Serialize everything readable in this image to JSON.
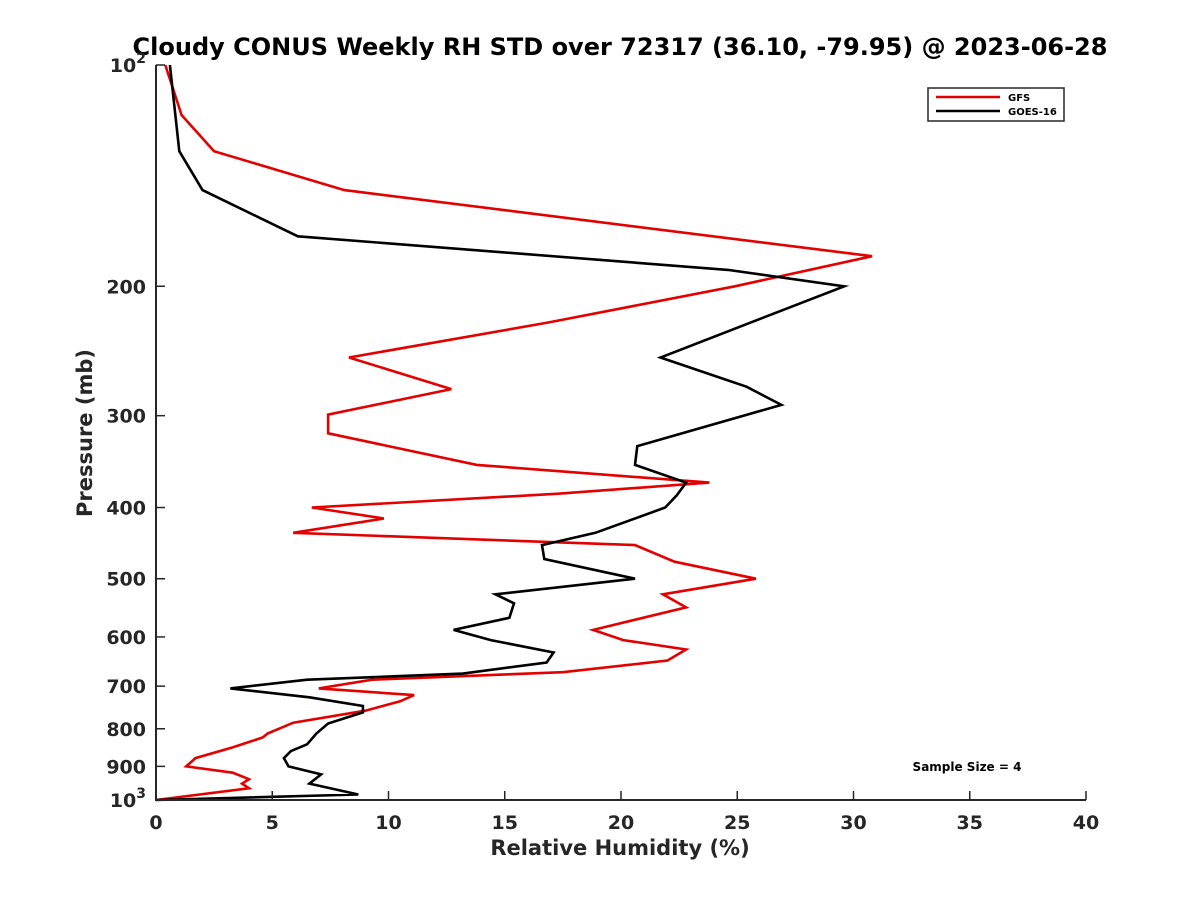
{
  "chart_data": {
    "type": "line",
    "title": "Cloudy CONUS Weekly RH STD over 72317 (36.10, -79.95) @ 2023-06-28",
    "xlabel": "Relative Humidity (%)",
    "ylabel": "Pressure (mb)",
    "xlim": [
      0,
      40
    ],
    "ylim": [
      100,
      1000
    ],
    "y_scale": "log",
    "y_reversed": true,
    "grid": false,
    "legend_position": "top-right",
    "x_ticks": [
      "0",
      "5",
      "10",
      "15",
      "20",
      "25",
      "30",
      "35",
      "40"
    ],
    "y_ticks": [
      {
        "value": 100,
        "base": "10",
        "exp": "2"
      },
      {
        "value": 200,
        "label": "200"
      },
      {
        "value": 300,
        "label": "300"
      },
      {
        "value": 400,
        "label": "400"
      },
      {
        "value": 500,
        "label": "500"
      },
      {
        "value": 600,
        "label": "600"
      },
      {
        "value": 700,
        "label": "700"
      },
      {
        "value": 800,
        "label": "800"
      },
      {
        "value": 900,
        "label": "900"
      },
      {
        "value": 1000,
        "base": "10",
        "exp": "3"
      }
    ],
    "annotation": "Sample Size = 4",
    "series": [
      {
        "name": "GFS",
        "color": "#e50000",
        "points": [
          [
            0.4,
            100
          ],
          [
            1.1,
            117
          ],
          [
            2.5,
            131
          ],
          [
            8.1,
            148
          ],
          [
            30.8,
            182
          ],
          [
            24.9,
            200
          ],
          [
            16.9,
            224
          ],
          [
            8.3,
            250
          ],
          [
            12.7,
            276
          ],
          [
            7.4,
            299
          ],
          [
            7.4,
            317
          ],
          [
            13.8,
            350
          ],
          [
            23.8,
            370
          ],
          [
            17.3,
            383
          ],
          [
            6.7,
            400
          ],
          [
            9.8,
            414
          ],
          [
            5.9,
            433
          ],
          [
            20.6,
            450
          ],
          [
            22.3,
            474
          ],
          [
            25.8,
            500
          ],
          [
            21.8,
            525
          ],
          [
            22.8,
            547
          ],
          [
            18.8,
            587
          ],
          [
            20.1,
            606
          ],
          [
            22.8,
            624
          ],
          [
            22.0,
            646
          ],
          [
            17.5,
            670
          ],
          [
            9.3,
            686
          ],
          [
            7.0,
            705
          ],
          [
            11.1,
            720
          ],
          [
            10.5,
            734
          ],
          [
            9.0,
            756
          ],
          [
            5.9,
            785
          ],
          [
            4.8,
            812
          ],
          [
            4.6,
            822
          ],
          [
            3.3,
            848
          ],
          [
            1.7,
            877
          ],
          [
            1.3,
            900
          ],
          [
            3.3,
            918
          ],
          [
            4.0,
            937
          ],
          [
            3.7,
            950
          ],
          [
            4.0,
            964
          ],
          [
            0.0,
            1000
          ]
        ]
      },
      {
        "name": "GOES-16",
        "color": "#000000",
        "points": [
          [
            0.6,
            100
          ],
          [
            1.0,
            131
          ],
          [
            2.0,
            148
          ],
          [
            6.1,
            171
          ],
          [
            24.6,
            190
          ],
          [
            29.6,
            200
          ],
          [
            21.7,
            250
          ],
          [
            25.4,
            274
          ],
          [
            26.9,
            290
          ],
          [
            20.7,
            330
          ],
          [
            20.6,
            350
          ],
          [
            22.8,
            370
          ],
          [
            22.4,
            385
          ],
          [
            21.9,
            400
          ],
          [
            18.9,
            433
          ],
          [
            16.6,
            450
          ],
          [
            16.7,
            470
          ],
          [
            20.6,
            500
          ],
          [
            14.6,
            525
          ],
          [
            15.4,
            540
          ],
          [
            15.2,
            565
          ],
          [
            12.8,
            587
          ],
          [
            14.4,
            606
          ],
          [
            17.1,
            630
          ],
          [
            16.8,
            650
          ],
          [
            13.2,
            673
          ],
          [
            6.5,
            686
          ],
          [
            3.2,
            705
          ],
          [
            6.6,
            725
          ],
          [
            8.9,
            745
          ],
          [
            8.9,
            760
          ],
          [
            7.4,
            787
          ],
          [
            6.9,
            812
          ],
          [
            6.5,
            840
          ],
          [
            5.8,
            858
          ],
          [
            5.5,
            877
          ],
          [
            5.7,
            900
          ],
          [
            7.1,
            923
          ],
          [
            6.6,
            950
          ],
          [
            8.7,
            983
          ],
          [
            0.0,
            1000
          ]
        ]
      }
    ]
  }
}
